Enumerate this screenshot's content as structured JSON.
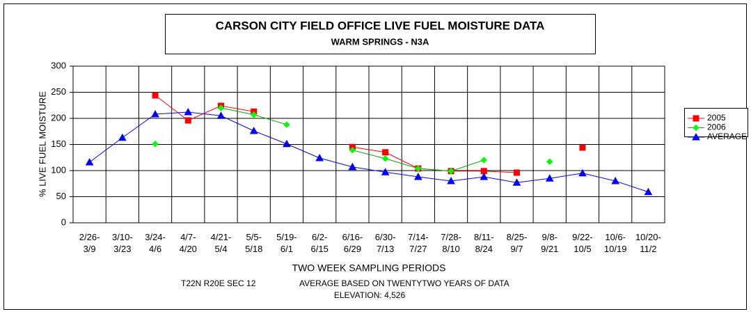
{
  "chart_data": {
    "type": "line",
    "title": "CARSON CITY FIELD OFFICE  LIVE FUEL MOISTURE DATA",
    "subtitle": "WARM SPRINGS - N3A",
    "y_label": "% LIVE FUEL MOISTURE",
    "x_label": "TWO WEEK SAMPLING PERIODS",
    "annotations": [
      "T22N R20E SEC 12",
      "AVERAGE BASED ON TWENTYTWO YEARS OF DATA",
      "ELEVATION: 4,526"
    ],
    "categories": [
      "2/26-3/9",
      "3/10-3/23",
      "3/24-4/6",
      "4/7-4/20",
      "4/21-5/4",
      "5/5-5/18",
      "5/19-6/1",
      "6/2-6/15",
      "6/16-6/29",
      "6/30-7/13",
      "7/14-7/27",
      "7/28-8/10",
      "8/11-8/24",
      "8/25-9/7",
      "9/8-9/21",
      "9/22-10/5",
      "10/6-10/19",
      "10/20-11/2"
    ],
    "series": [
      {
        "name": "2005",
        "color": "#ff0000",
        "marker": "square",
        "values": [
          null,
          null,
          244,
          196,
          224,
          213,
          null,
          null,
          145,
          135,
          104,
          99,
          99,
          96,
          null,
          144,
          null,
          null
        ]
      },
      {
        "name": "2006",
        "color": "#00ff00",
        "line_color": "#00aa00",
        "marker": "diamond",
        "values": [
          null,
          null,
          151,
          null,
          220,
          207,
          188,
          null,
          139,
          123,
          104,
          99,
          120,
          null,
          117,
          null,
          null,
          null
        ]
      },
      {
        "name": "AVERAGE",
        "color": "#0000ff",
        "marker": "triangle",
        "values": [
          116,
          163,
          208,
          212,
          205,
          176,
          151,
          124,
          107,
          97,
          88,
          80,
          88,
          77,
          85,
          95,
          80,
          59
        ]
      }
    ],
    "ylim": [
      0,
      300
    ],
    "yticks": [
      0,
      50,
      100,
      150,
      200,
      250,
      300
    ],
    "grid": true,
    "legend": "right"
  }
}
